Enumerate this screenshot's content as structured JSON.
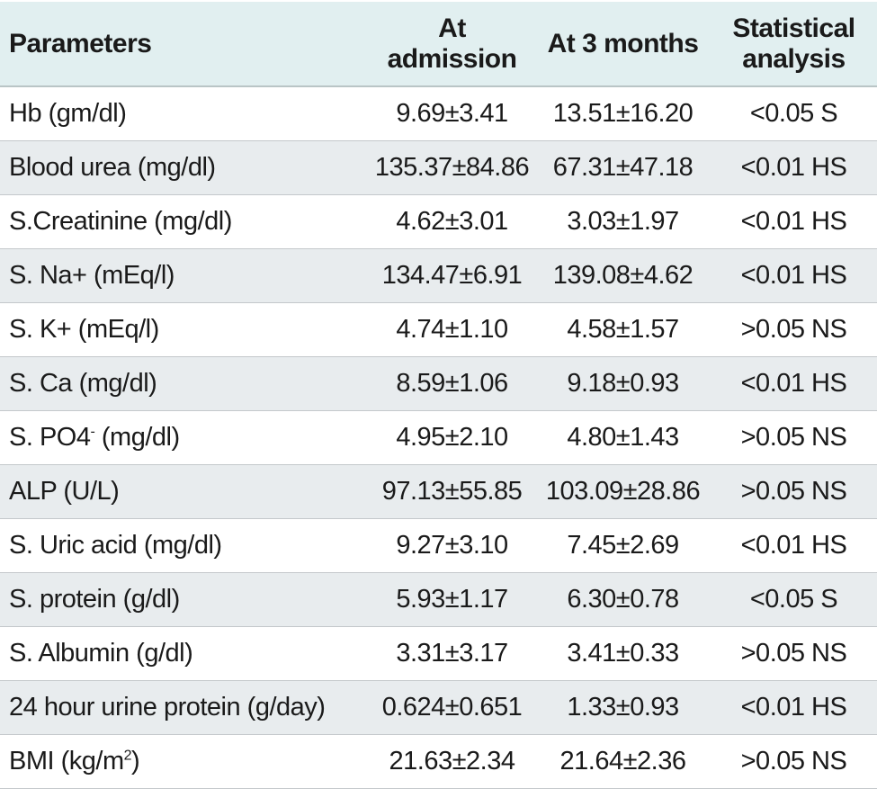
{
  "table": {
    "headers": {
      "parameters": "Parameters",
      "at_admission": "At admission",
      "at_3_months": "At 3 months",
      "statistical_analysis": "Statistical analysis"
    },
    "rows": [
      {
        "param": "Hb (gm/dl)",
        "admission": "9.69±3.41",
        "three_months": "13.51±16.20",
        "stat": "<0.05 S"
      },
      {
        "param": "Blood urea (mg/dl)",
        "admission": "135.37±84.86",
        "three_months": "67.31±47.18",
        "stat": "<0.01 HS"
      },
      {
        "param": "S.Creatinine (mg/dl)",
        "admission": "4.62±3.01",
        "three_months": "3.03±1.97",
        "stat": "<0.01 HS"
      },
      {
        "param": "S. Na+ (mEq/l)",
        "admission": "134.47±6.91",
        "three_months": "139.08±4.62",
        "stat": "<0.01 HS"
      },
      {
        "param": "S. K+ (mEq/l)",
        "admission": "4.74±1.10",
        "three_months": "4.58±1.57",
        "stat": ">0.05 NS"
      },
      {
        "param": "S. Ca (mg/dl)",
        "admission": "8.59±1.06",
        "three_months": "9.18±0.93",
        "stat": "<0.01 HS"
      },
      {
        "param_main": "S. PO4",
        "param_sup": "-",
        "param_rest": " (mg/dl)",
        "admission": "4.95±2.10",
        "three_months": "4.80±1.43",
        "stat": ">0.05 NS"
      },
      {
        "param": "ALP (U/L)",
        "admission": "97.13±55.85",
        "three_months": "103.09±28.86",
        "stat": ">0.05 NS"
      },
      {
        "param": "S. Uric acid (mg/dl)",
        "admission": "9.27±3.10",
        "three_months": "7.45±2.69",
        "stat": "<0.01 HS"
      },
      {
        "param": "S. protein (g/dl)",
        "admission": "5.93±1.17",
        "three_months": "6.30±0.78",
        "stat": "<0.05 S"
      },
      {
        "param": "S. Albumin (g/dl)",
        "admission": "3.31±3.17",
        "three_months": "3.41±0.33",
        "stat": ">0.05 NS"
      },
      {
        "param": "24 hour urine protein (g/day)",
        "admission": "0.624±0.651",
        "three_months": "1.33±0.93",
        "stat": "<0.01 HS"
      },
      {
        "param_main": "BMI (kg/m",
        "param_sup": "2",
        "param_rest": ")",
        "admission": "21.63±2.34",
        "three_months": "21.64±2.36",
        "stat": ">0.05 NS"
      }
    ]
  }
}
